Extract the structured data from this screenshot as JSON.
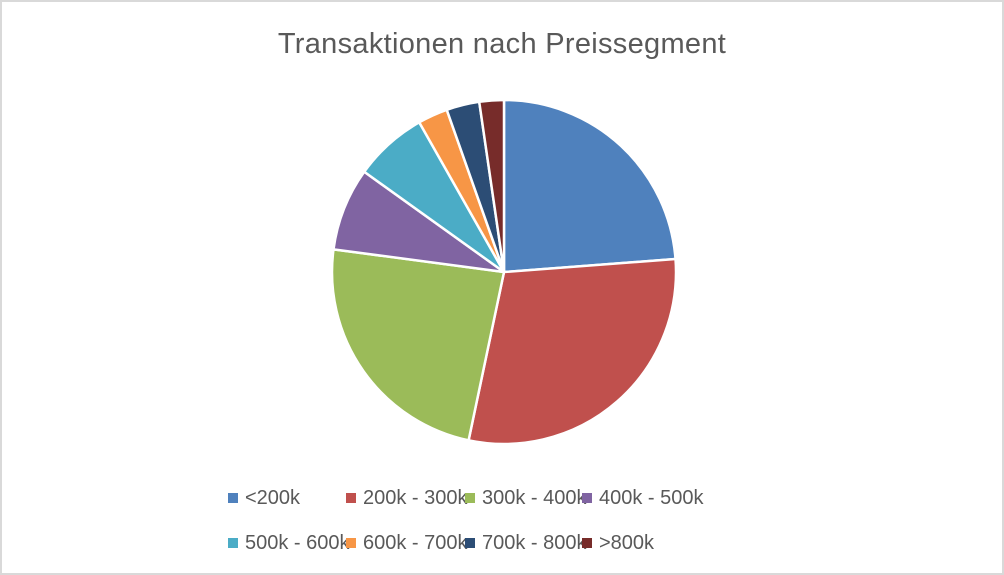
{
  "chart_data": {
    "type": "pie",
    "title": "Transaktionen nach Preissegment",
    "categories": [
      "<200k",
      "200k - 300k",
      "300k - 400k",
      "400k - 500k",
      "500k - 600k",
      "600k - 700k",
      "700k - 800k",
      ">800k"
    ],
    "values": [
      23.8,
      29.5,
      23.8,
      7.8,
      6.9,
      2.8,
      3.1,
      2.3
    ],
    "values_unit": "percent (estimated from slice angles)",
    "colors": [
      "#4F81BD",
      "#C0504D",
      "#9BBB59",
      "#8064A2",
      "#4BACC6",
      "#F79646",
      "#2C4D75",
      "#772C2A"
    ],
    "start_angle_deg": 0,
    "direction": "clockwise",
    "slice_border_color": "#FFFFFF",
    "legend_position": "bottom",
    "legend_rows": 2,
    "legend_columns": 4,
    "title_color": "#595959",
    "legend_text_color": "#595959",
    "background_color": "#FFFFFF",
    "frame_border_color": "#D9D9D9"
  }
}
